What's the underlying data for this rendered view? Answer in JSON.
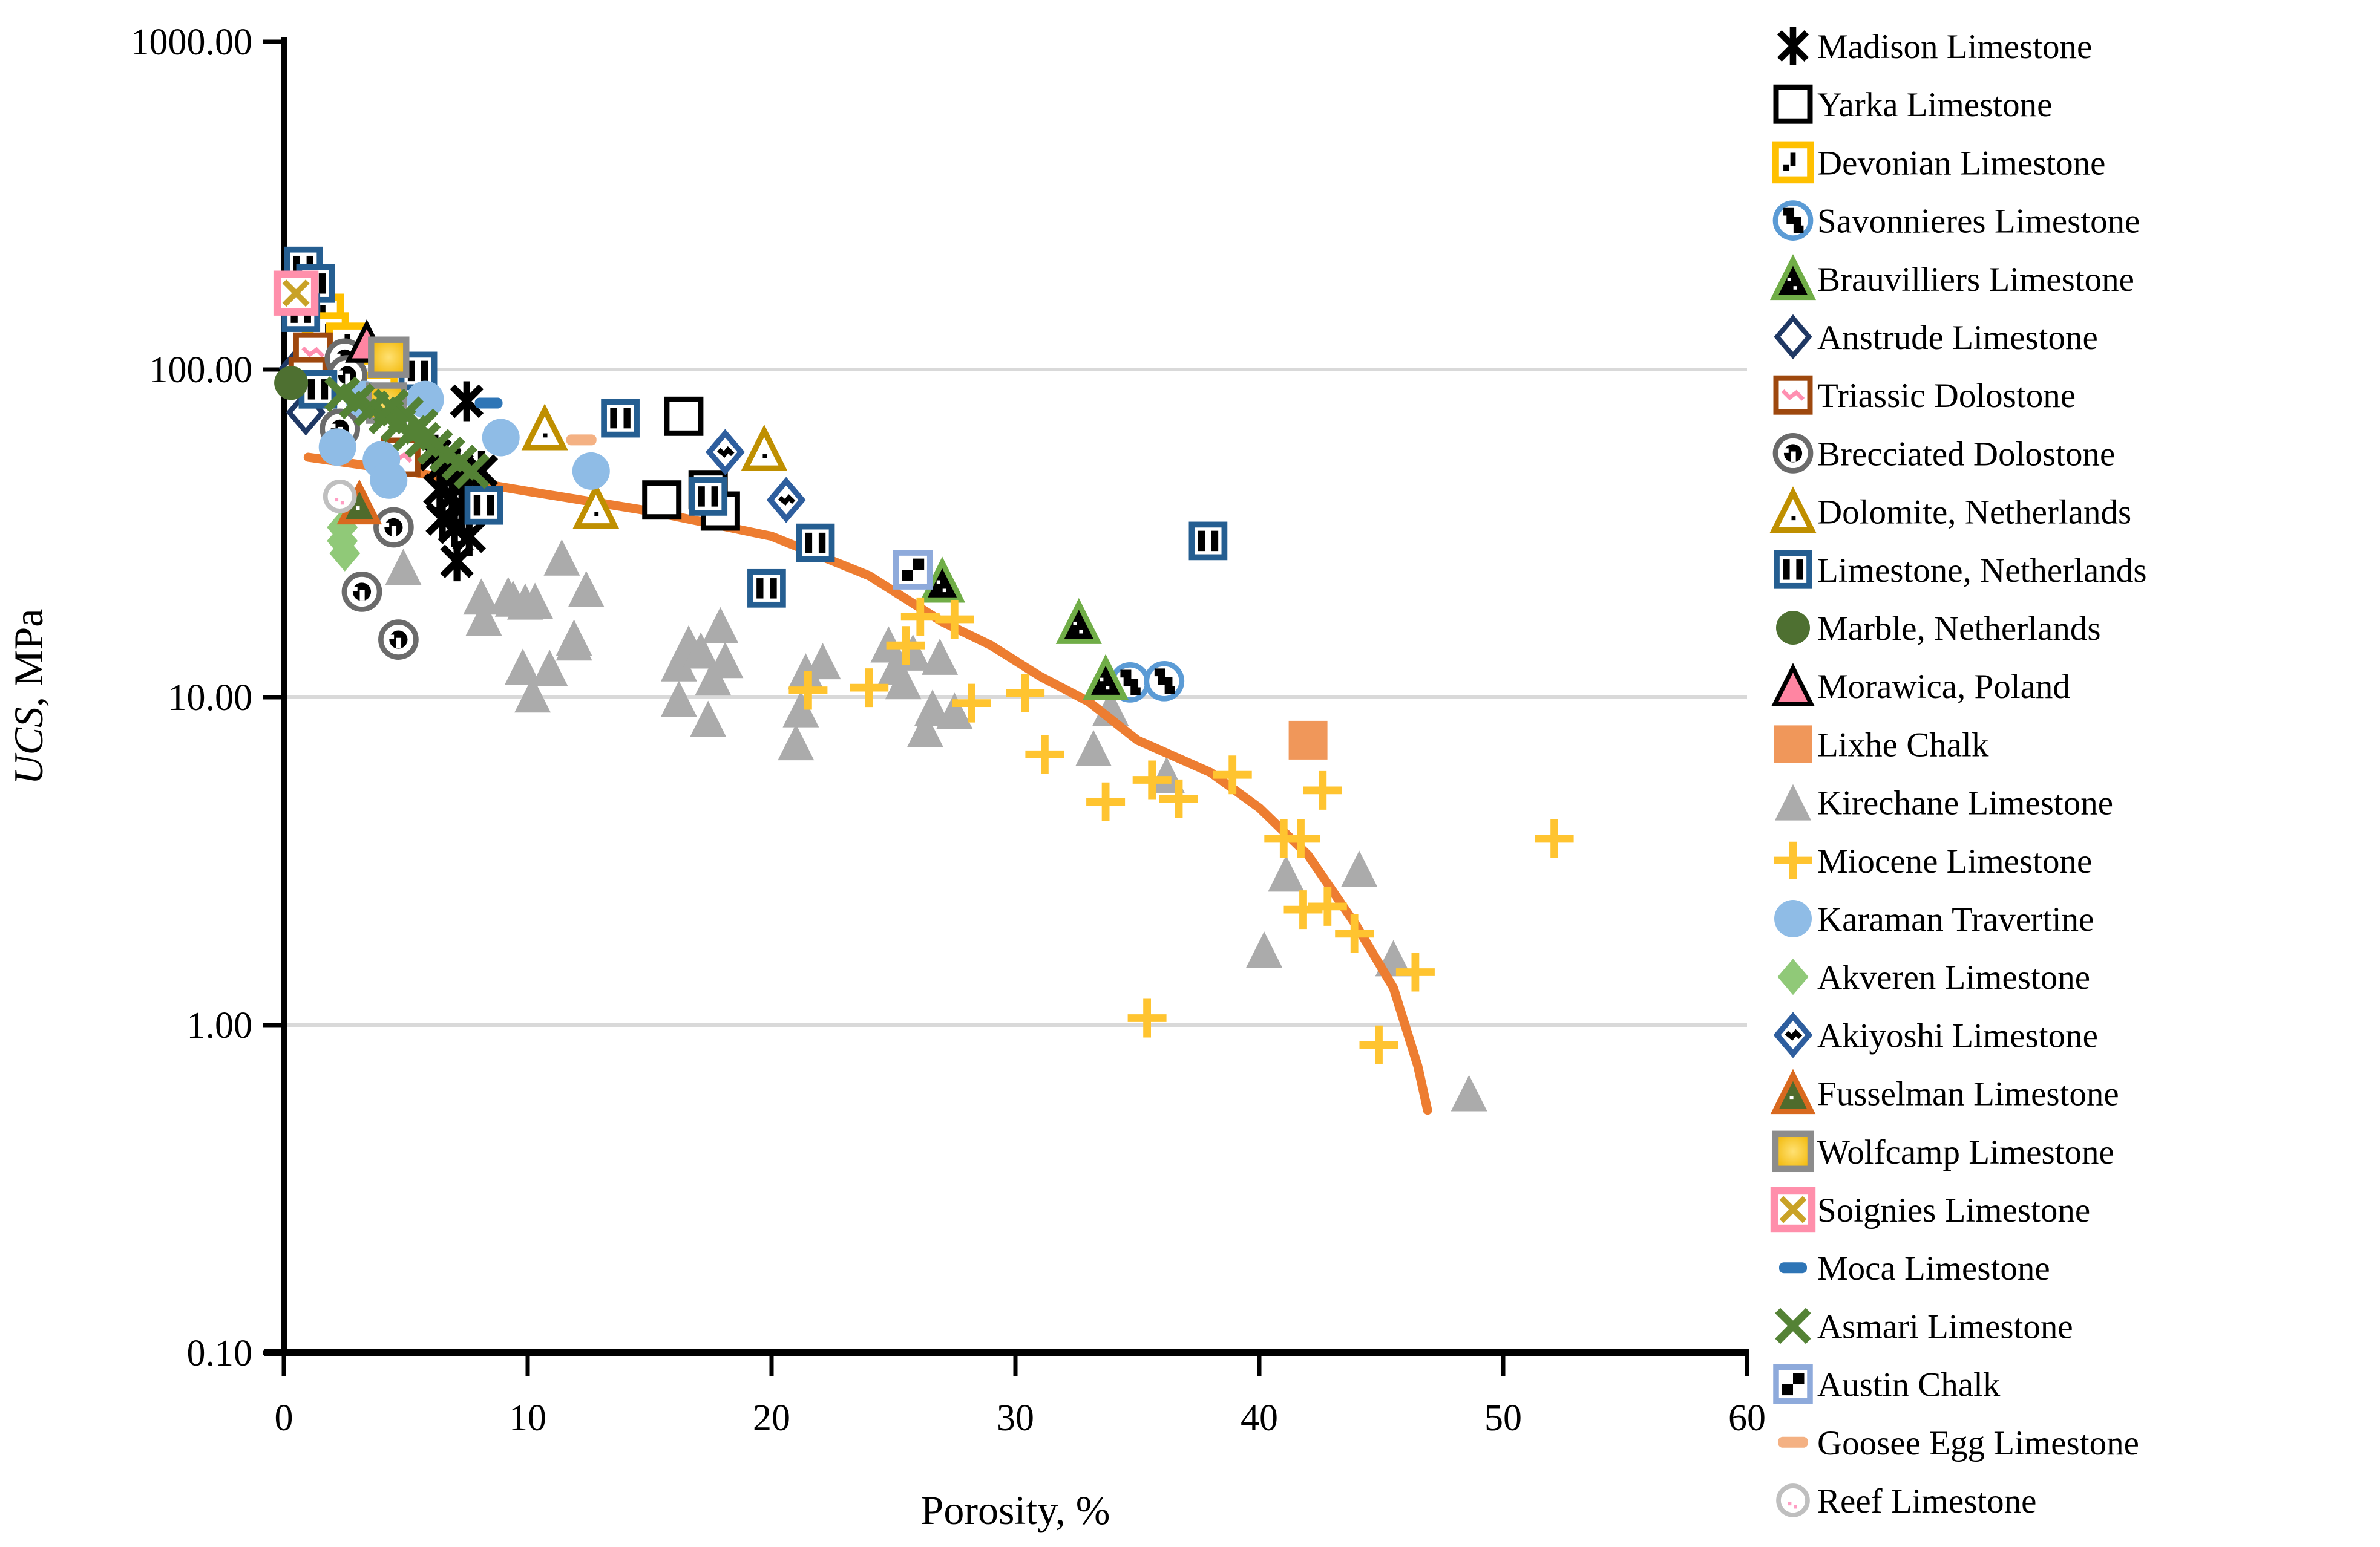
{
  "figure": {
    "background": "#FFFFFF"
  },
  "axes": {
    "x": {
      "title": "Porosity, %",
      "tick_labels": [
        "0",
        "10",
        "20",
        "30",
        "40",
        "50",
        "60"
      ],
      "tick_values": [
        0,
        10,
        20,
        30,
        40,
        50,
        60
      ],
      "min": 0,
      "max": 60
    },
    "y": {
      "title": "UCS, MPa",
      "scale": "log",
      "tick_labels": [
        "1000.00",
        "100.00",
        "10.00",
        "1.00",
        "0.10"
      ],
      "tick_values": [
        1000,
        100,
        10,
        1,
        0.1
      ],
      "gridline_values": [
        100,
        10,
        1
      ],
      "min": 0.1,
      "max": 1000
    }
  },
  "colors": {
    "grid": "#D9D9D9",
    "axis": "#000000",
    "trend": "#ED7D31"
  },
  "chart_data": {
    "type": "scatter",
    "title": "",
    "xlabel": "Porosity, %",
    "ylabel": "UCS, MPa",
    "ylabel_parts": [
      "UCS",
      ", MPa"
    ],
    "xlim": [
      0,
      60
    ],
    "ylim": [
      0.1,
      1000
    ],
    "y_scale": "log",
    "grid": "horizontal-only",
    "legend_position": "right",
    "trend_line": {
      "color": "#ED7D31",
      "points": [
        [
          1,
          54
        ],
        [
          5,
          49
        ],
        [
          10,
          42.5
        ],
        [
          15,
          37
        ],
        [
          20,
          31
        ],
        [
          24,
          23.5
        ],
        [
          27,
          17
        ],
        [
          29,
          14.4
        ],
        [
          31,
          11.6
        ],
        [
          33,
          9.7
        ],
        [
          35,
          7.4
        ],
        [
          38,
          5.9
        ],
        [
          40,
          4.6
        ],
        [
          42,
          3.3
        ],
        [
          44,
          2.0
        ],
        [
          45.5,
          1.3
        ],
        [
          46.5,
          0.75
        ],
        [
          46.9,
          0.55
        ]
      ]
    },
    "series": [
      {
        "name": "Madison Limestone",
        "marker": "star6",
        "size": 66,
        "colors": {
          "stroke": "#000000"
        },
        "points": [
          [
            7.5,
            80
          ],
          [
            6.2,
            55
          ],
          [
            6.6,
            52
          ],
          [
            7.1,
            50
          ],
          [
            7.6,
            47
          ],
          [
            8.1,
            49
          ],
          [
            6.4,
            43
          ],
          [
            6.9,
            41
          ],
          [
            7.3,
            38
          ],
          [
            6.5,
            35
          ],
          [
            7.0,
            33
          ],
          [
            7.6,
            31
          ],
          [
            7.1,
            26
          ]
        ]
      },
      {
        "name": "Yarka Limestone",
        "marker": "square",
        "size": 56,
        "colors": {
          "stroke": "#000000",
          "fill": "#FFFFFF"
        },
        "points": [
          [
            16.4,
            72
          ],
          [
            15.5,
            40
          ],
          [
            17.4,
            43
          ],
          [
            17.9,
            37
          ]
        ]
      },
      {
        "name": "Devonian Limestone",
        "marker": "square-dash",
        "size": 58,
        "colors": {
          "stroke": "#FFC000",
          "fill": "#FFFFFF",
          "pattern": "#000000"
        },
        "points": [
          [
            1.6,
            147
          ],
          [
            1.8,
            129
          ],
          [
            2.6,
            120
          ],
          [
            3.8,
            85
          ]
        ]
      },
      {
        "name": "Savonnieres Limestone",
        "marker": "circle-steps",
        "size": 58,
        "colors": {
          "stroke": "#5B9BD5",
          "fill": "#FFFFFF",
          "pattern": "#000000"
        },
        "points": [
          [
            34.7,
            11.1
          ],
          [
            36.1,
            11.2
          ]
        ]
      },
      {
        "name": "Brauvilliers Limestone",
        "marker": "triangle-dark",
        "size": 62,
        "colors": {
          "stroke": "#70AD47",
          "fill": "#000000",
          "speck": "#FFFFFF"
        },
        "points": [
          [
            27.0,
            22.6
          ],
          [
            32.6,
            16.9
          ],
          [
            33.7,
            11.4
          ]
        ]
      },
      {
        "name": "Anstrude Limestone",
        "marker": "diamond",
        "size": 64,
        "colors": {
          "stroke": "#1F3864",
          "fill": "#FFFFFF"
        },
        "points": [
          [
            0.6,
            101
          ],
          [
            0.9,
            74
          ]
        ]
      },
      {
        "name": "Triassic Dolostone",
        "marker": "square-zigzag",
        "size": 56,
        "colors": {
          "stroke": "#9E480E",
          "fill": "#FFFFFF",
          "pattern": "#FF8FB1"
        },
        "points": [
          [
            1.2,
            113
          ],
          [
            1.0,
            95
          ],
          [
            4.8,
            54
          ]
        ]
      },
      {
        "name": "Brecciated Dolostone",
        "marker": "circle-blob",
        "size": 58,
        "colors": {
          "stroke": "#6B6B6B",
          "fill": "#FFFFFF",
          "pattern": "#000000"
        },
        "points": [
          [
            2.5,
            108
          ],
          [
            2.6,
            96
          ],
          [
            2.3,
            66
          ],
          [
            4.5,
            33
          ],
          [
            3.2,
            21
          ],
          [
            4.7,
            15
          ]
        ]
      },
      {
        "name": "Dolomite, Netherlands",
        "marker": "triangle-dot",
        "size": 62,
        "colors": {
          "stroke": "#BF8F00",
          "fill": "#FFFFFF",
          "pattern": "#000000"
        },
        "points": [
          [
            10.7,
            66
          ],
          [
            19.7,
            57
          ],
          [
            12.8,
            38
          ]
        ]
      },
      {
        "name": "Limestone, Netherlands",
        "marker": "square-bars",
        "size": 54,
        "colors": {
          "stroke": "#255E91",
          "fill": "#FFFFFF",
          "pattern": "#000000"
        },
        "points": [
          [
            0.8,
            207
          ],
          [
            1.3,
            183
          ],
          [
            0.7,
            149
          ],
          [
            1.4,
            87
          ],
          [
            5.5,
            99
          ],
          [
            8.2,
            38.5
          ],
          [
            13.8,
            71
          ],
          [
            17.4,
            41
          ],
          [
            21.8,
            29.6
          ],
          [
            19.8,
            21.5
          ],
          [
            37.9,
            30
          ]
        ]
      },
      {
        "name": "Marble, Netherlands",
        "marker": "circle-fill",
        "size": 56,
        "colors": {
          "fill": "#4E7031"
        },
        "points": [
          [
            0.3,
            91
          ]
        ]
      },
      {
        "name": "Morawica, Poland",
        "marker": "triangle-outline-fill",
        "size": 60,
        "colors": {
          "stroke": "#000000",
          "fill": "#FF85A2"
        },
        "points": [
          [
            3.4,
            121
          ]
        ]
      },
      {
        "name": "Lixhe Chalk",
        "marker": "square-fill",
        "size": 64,
        "colors": {
          "fill": "#F0975A"
        },
        "points": [
          [
            42.0,
            7.4
          ]
        ]
      },
      {
        "name": "Kirechane Limestone",
        "marker": "triangle-fill",
        "size": 60,
        "colors": {
          "fill": "#ABABAB"
        },
        "points": [
          [
            4.9,
            25
          ],
          [
            8.1,
            20.3
          ],
          [
            9.2,
            20.5
          ],
          [
            9.9,
            19.6
          ],
          [
            8.2,
            17.5
          ],
          [
            9.4,
            20
          ],
          [
            10.3,
            19.7
          ],
          [
            11.4,
            26.7
          ],
          [
            12.4,
            21.4
          ],
          [
            11.9,
            15.2
          ],
          [
            9.8,
            12.4
          ],
          [
            10.9,
            12.3
          ],
          [
            11.9,
            14.7
          ],
          [
            10.2,
            10.2
          ],
          [
            16.2,
            12.7
          ],
          [
            16.6,
            14.6
          ],
          [
            17.1,
            13.9
          ],
          [
            16.2,
            9.9
          ],
          [
            17.4,
            8.6
          ],
          [
            17.9,
            16.6
          ],
          [
            18.1,
            13.0
          ],
          [
            17.6,
            11.5
          ],
          [
            21.4,
            12.0
          ],
          [
            22.1,
            12.9
          ],
          [
            21.2,
            9.2
          ],
          [
            21.0,
            7.3
          ],
          [
            25.1,
            12.4
          ],
          [
            25.8,
            13.7
          ],
          [
            26.9,
            13.3
          ],
          [
            25.4,
            11.2
          ],
          [
            24.8,
            14.5
          ],
          [
            26.6,
            9.3
          ],
          [
            27.5,
            9.1
          ],
          [
            26.3,
            8.0
          ],
          [
            33.9,
            9.3
          ],
          [
            33.2,
            7.0
          ],
          [
            36.2,
            5.8
          ],
          [
            41.1,
            2.9
          ],
          [
            44.1,
            3.0
          ],
          [
            40.2,
            1.7
          ],
          [
            45.5,
            1.6
          ],
          [
            48.6,
            0.62
          ]
        ]
      },
      {
        "name": "Miocene Limestone",
        "marker": "plus",
        "size": 64,
        "colors": {
          "stroke": "#FFC430"
        },
        "points": [
          [
            21.5,
            10.5
          ],
          [
            24.0,
            10.7
          ],
          [
            25.5,
            14.4
          ],
          [
            26.1,
            17.6
          ],
          [
            27.5,
            17.3
          ],
          [
            28.2,
            9.6
          ],
          [
            30.4,
            10.3
          ],
          [
            31.2,
            6.7
          ],
          [
            33.7,
            4.8
          ],
          [
            35.6,
            5.6
          ],
          [
            36.7,
            4.9
          ],
          [
            38.9,
            5.8
          ],
          [
            35.4,
            1.05
          ],
          [
            41.0,
            3.7
          ],
          [
            41.7,
            3.7
          ],
          [
            42.6,
            5.2
          ],
          [
            41.8,
            2.25
          ],
          [
            42.8,
            2.3
          ],
          [
            43.9,
            1.9
          ],
          [
            46.4,
            1.45
          ],
          [
            44.9,
            0.87
          ],
          [
            52.1,
            3.7
          ]
        ]
      },
      {
        "name": "Karaman Travertine",
        "marker": "circle-fill",
        "size": 62,
        "colors": {
          "fill": "#8FBCE6"
        },
        "points": [
          [
            2.2,
            58
          ],
          [
            3.3,
            81
          ],
          [
            5.8,
            81
          ],
          [
            4.0,
            53
          ],
          [
            4.3,
            46
          ],
          [
            8.9,
            62
          ],
          [
            12.6,
            49
          ]
        ]
      },
      {
        "name": "Akveren Limestone",
        "marker": "diamond-fill",
        "size": 60,
        "colors": {
          "fill": "#90C978"
        },
        "points": [
          [
            2.4,
            33
          ],
          [
            2.4,
            30
          ],
          [
            2.5,
            27.5
          ]
        ]
      },
      {
        "name": "Akiyoshi Limestone",
        "marker": "diamond-zigzag",
        "size": 62,
        "colors": {
          "stroke": "#2E5E9E",
          "fill": "#FFFFFF",
          "pattern": "#000000"
        },
        "points": [
          [
            18.1,
            56
          ],
          [
            20.6,
            40
          ]
        ]
      },
      {
        "name": "Fusselman Limestone",
        "marker": "triangle-green",
        "size": 60,
        "colors": {
          "stroke": "#D9691F",
          "fill": "#4F6B2C",
          "speck": "#FFFFFF"
        },
        "points": [
          [
            3.1,
            39
          ]
        ]
      },
      {
        "name": "Wolfcamp Limestone",
        "marker": "square-grad",
        "size": 58,
        "colors": {
          "stroke": "#8C8C8C",
          "fill": "#F1B500",
          "fill2": "#FFE173"
        },
        "points": [
          [
            4.3,
            109
          ],
          [
            4.2,
            79
          ]
        ]
      },
      {
        "name": "Soignies Limestone",
        "marker": "square-x",
        "size": 62,
        "colors": {
          "stroke": "#FF8FAB",
          "fill": "#FFFFFF",
          "pattern": "#C9A227"
        },
        "points": [
          [
            0.5,
            171
          ]
        ]
      },
      {
        "name": "Moca Limestone",
        "marker": "dash",
        "size": 46,
        "colors": {
          "fill": "#2E75B6"
        },
        "points": [
          [
            8.4,
            79
          ]
        ]
      },
      {
        "name": "Asmari Limestone",
        "marker": "x",
        "size": 62,
        "colors": {
          "stroke": "#548235"
        },
        "points": [
          [
            2.4,
            84
          ],
          [
            3.0,
            80
          ],
          [
            3.6,
            76
          ],
          [
            4.2,
            72
          ],
          [
            4.7,
            68
          ],
          [
            5.2,
            64
          ],
          [
            5.7,
            61
          ],
          [
            6.2,
            58
          ],
          [
            6.7,
            55
          ],
          [
            7.2,
            52
          ],
          [
            7.7,
            49
          ],
          [
            5.0,
            73
          ],
          [
            5.6,
            67
          ],
          [
            4.4,
            77
          ]
        ]
      },
      {
        "name": "Austin Chalk",
        "marker": "square-checker",
        "size": 56,
        "colors": {
          "stroke": "#8EAADB",
          "fill": "#FFFFFF",
          "pattern": "#000000"
        },
        "points": [
          [
            25.8,
            24.5
          ]
        ]
      },
      {
        "name": "Goosee Egg Limestone",
        "marker": "dash",
        "size": 50,
        "colors": {
          "fill": "#F4B183"
        },
        "points": [
          [
            12.2,
            61
          ]
        ]
      },
      {
        "name": "Reef Limestone",
        "marker": "circle-specks",
        "size": 48,
        "colors": {
          "stroke": "#BFBFBF",
          "fill": "#FFFFFF",
          "pattern": "#FF9EC4"
        },
        "points": [
          [
            2.3,
            41
          ]
        ]
      }
    ]
  }
}
